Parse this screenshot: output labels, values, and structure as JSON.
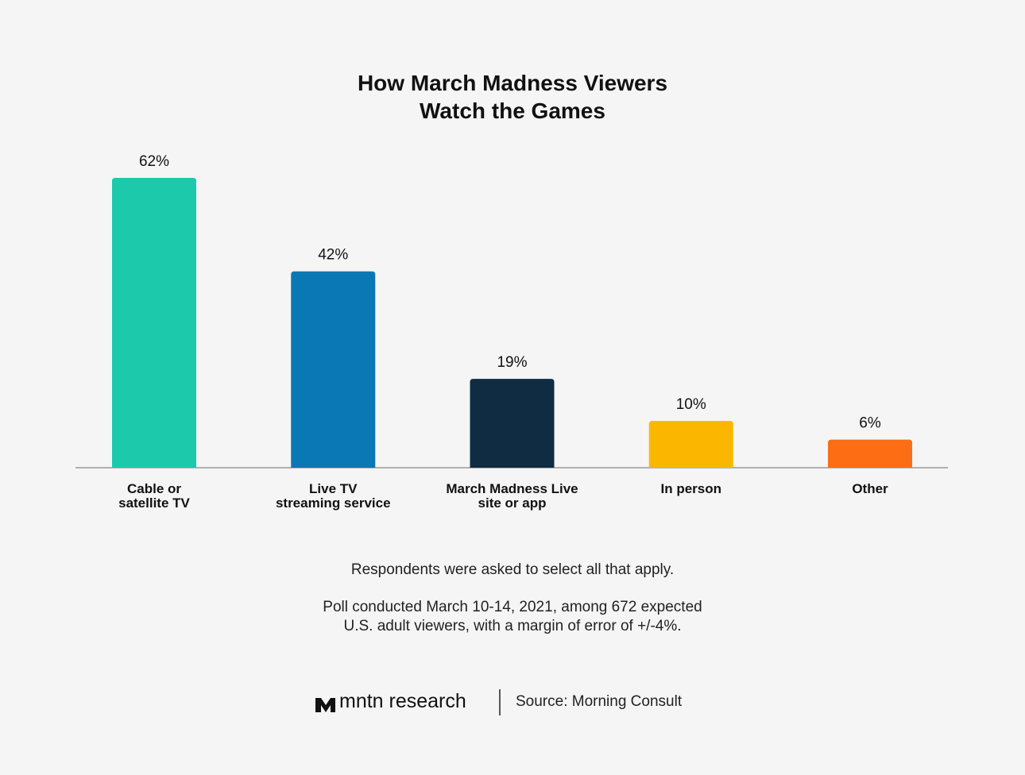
{
  "chart_data": {
    "type": "bar",
    "title": "How March Madness Viewers\nWatch the Games",
    "categories": [
      "Cable or\nsatellite TV",
      "Live TV\nstreaming service",
      "March Madness Live\nsite or app",
      "In person",
      "Other"
    ],
    "values": [
      62,
      42,
      19,
      10,
      6
    ],
    "value_labels": [
      "62%",
      "42%",
      "19%",
      "10%",
      "6%"
    ],
    "colors": [
      "#1dc9ab",
      "#0a78b5",
      "#102c42",
      "#fbb700",
      "#fd6d14"
    ],
    "notes": [
      "Respondents were asked to select all that apply.",
      "Poll conducted March 10-14, 2021, among 672 expected\nU.S. adult viewers, with a margin of error of +/-4%."
    ],
    "logo": "mntn research",
    "source": "Source: Morning Consult"
  }
}
